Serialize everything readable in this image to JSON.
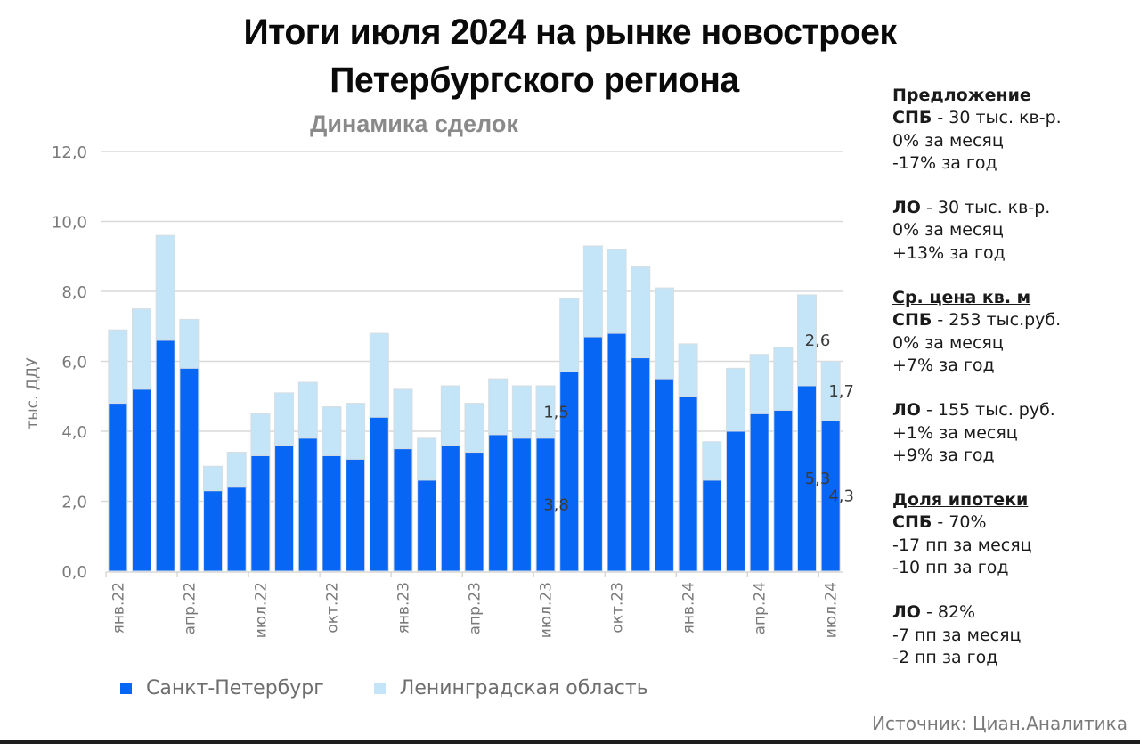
{
  "header": {
    "title_line1": "Итоги июля 2024 на рынке новостроек",
    "title_line2": "Петербургского региона"
  },
  "chart_data": {
    "type": "bar",
    "stacked": true,
    "title": "Динамика сделок",
    "xlabel": "",
    "ylabel": "тыс. ДДУ",
    "ylim": [
      0,
      12
    ],
    "yticks": [
      "0,0",
      "2,0",
      "4,0",
      "6,0",
      "8,0",
      "10,0",
      "12,0"
    ],
    "ytick_values": [
      0,
      2,
      4,
      6,
      8,
      10,
      12
    ],
    "grid": true,
    "legend_position": "bottom-left",
    "categories": [
      "янв.22",
      "фев.22",
      "мар.22",
      "апр.22",
      "май.22",
      "июн.22",
      "июл.22",
      "авг.22",
      "сен.22",
      "окт.22",
      "ноя.22",
      "дек.22",
      "янв.23",
      "фев.23",
      "мар.23",
      "апр.23",
      "май.23",
      "июн.23",
      "июл.23",
      "авг.23",
      "сен.23",
      "окт.23",
      "ноя.23",
      "дек.23",
      "янв.24",
      "фев.24",
      "мар.24",
      "апр.24",
      "май.24",
      "июн.24",
      "июл.24"
    ],
    "visible_xtick_labels": [
      "янв.22",
      "апр.22",
      "июл.22",
      "окт.22",
      "янв.23",
      "апр.23",
      "июл.23",
      "окт.23",
      "янв.24",
      "апр.24",
      "июл.24"
    ],
    "series": [
      {
        "name": "Санкт-Петербург",
        "color": "#0866f5",
        "values": [
          4.8,
          5.2,
          6.6,
          5.8,
          2.3,
          2.4,
          3.3,
          3.6,
          3.8,
          3.3,
          3.2,
          4.4,
          3.5,
          2.6,
          3.6,
          3.4,
          3.9,
          3.8,
          3.8,
          5.7,
          6.7,
          6.8,
          6.1,
          5.5,
          5.0,
          2.6,
          4.0,
          4.5,
          4.6,
          5.3,
          4.3
        ]
      },
      {
        "name": "Ленинградская область",
        "color": "#c4e4f7",
        "values": [
          2.1,
          2.3,
          3.0,
          1.4,
          0.7,
          1.0,
          1.2,
          1.5,
          1.6,
          1.4,
          1.6,
          2.4,
          1.7,
          1.2,
          1.7,
          1.4,
          1.6,
          1.5,
          1.5,
          2.1,
          2.6,
          2.4,
          2.6,
          2.6,
          1.5,
          1.1,
          1.8,
          1.7,
          1.8,
          2.6,
          1.7
        ]
      }
    ],
    "data_labels": [
      {
        "category": "июл.23",
        "series": "Санкт-Петербург",
        "text": "3,8"
      },
      {
        "category": "июл.23",
        "series": "Ленинградская область",
        "text": "1,5"
      },
      {
        "category": "июн.24",
        "series": "Санкт-Петербург",
        "text": "5,3"
      },
      {
        "category": "июн.24",
        "series": "Ленинградская область",
        "text": "2,6"
      },
      {
        "category": "июл.24",
        "series": "Санкт-Петербург",
        "text": "4,3"
      },
      {
        "category": "июл.24",
        "series": "Ленинградская область",
        "text": "1,7"
      }
    ]
  },
  "legend": {
    "spb": "Санкт-Петербург",
    "lo": "Ленинградская область"
  },
  "side_panel": {
    "offer": {
      "heading": "Предложение",
      "spb_label": "СПБ",
      "spb_value": " - 30 тыс. кв-р.",
      "spb_month": "0% за месяц",
      "spb_year": "-17% за год",
      "lo_label": "ЛО",
      "lo_value": " - 30 тыс. кв-р.",
      "lo_month": "0% за месяц",
      "lo_year": "+13% за год"
    },
    "price": {
      "heading": "Ср. цена кв. м",
      "spb_label": "СПБ",
      "spb_value": " - 253 тыс.руб.",
      "spb_month": "0% за месяц",
      "spb_year": "+7% за год",
      "lo_label": "ЛО",
      "lo_value": " - 155 тыс. руб.",
      "lo_month": "+1% за месяц",
      "lo_year": "+9% за год"
    },
    "mortgage": {
      "heading": "Доля ипотеки",
      "spb_label": "СПБ",
      "spb_value": " - 70%",
      "spb_month": "-17 пп за месяц",
      "spb_year": "-10 пп за год",
      "lo_label": "ЛО",
      "lo_value": " - 82%",
      "lo_month": "-7 пп за месяц",
      "lo_year": "-2 пп за год"
    }
  },
  "footer": {
    "source": "Источник: Циан.Аналитика"
  }
}
